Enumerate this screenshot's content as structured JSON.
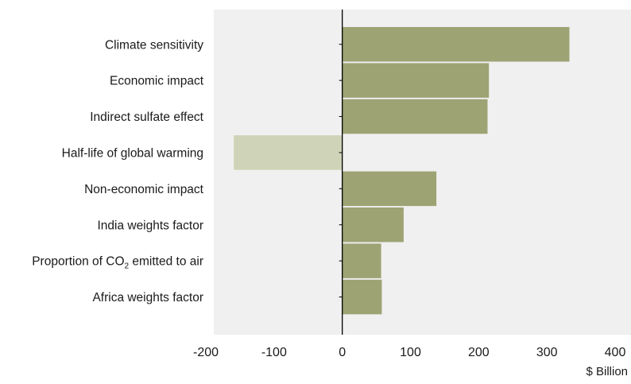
{
  "chart_data": {
    "type": "bar",
    "orientation": "horizontal",
    "categories": [
      "Climate sensitivity",
      "Economic impact",
      "Indirect sulfate effect",
      "Half-life of global warming",
      "Non-economic impact",
      "India weights factor",
      "Proportion of CO2 emitted to air",
      "Africa weights factor"
    ],
    "category_label_parts": [
      null,
      null,
      null,
      null,
      null,
      null,
      {
        "before": "Proportion of CO",
        "sub": "2",
        "after": " emitted to air"
      },
      null
    ],
    "values": [
      333,
      215,
      213,
      -159,
      138,
      90,
      57,
      58
    ],
    "colors": {
      "positive": "#9da373",
      "negative": "#cfd3b7",
      "plot_background": "#f0f0f0",
      "axis": "#000000",
      "text": "#1a1a1a"
    },
    "xlim": [
      -200,
      400
    ],
    "x_ticks": [
      -200,
      -100,
      0,
      100,
      200,
      300,
      400
    ],
    "x_tick_labels": [
      "-200",
      "-100",
      "0",
      "100",
      "200",
      "300",
      "400"
    ],
    "xlabel": "$ Billion",
    "ylabel": "",
    "title": "",
    "grid": false,
    "legend": "none"
  }
}
